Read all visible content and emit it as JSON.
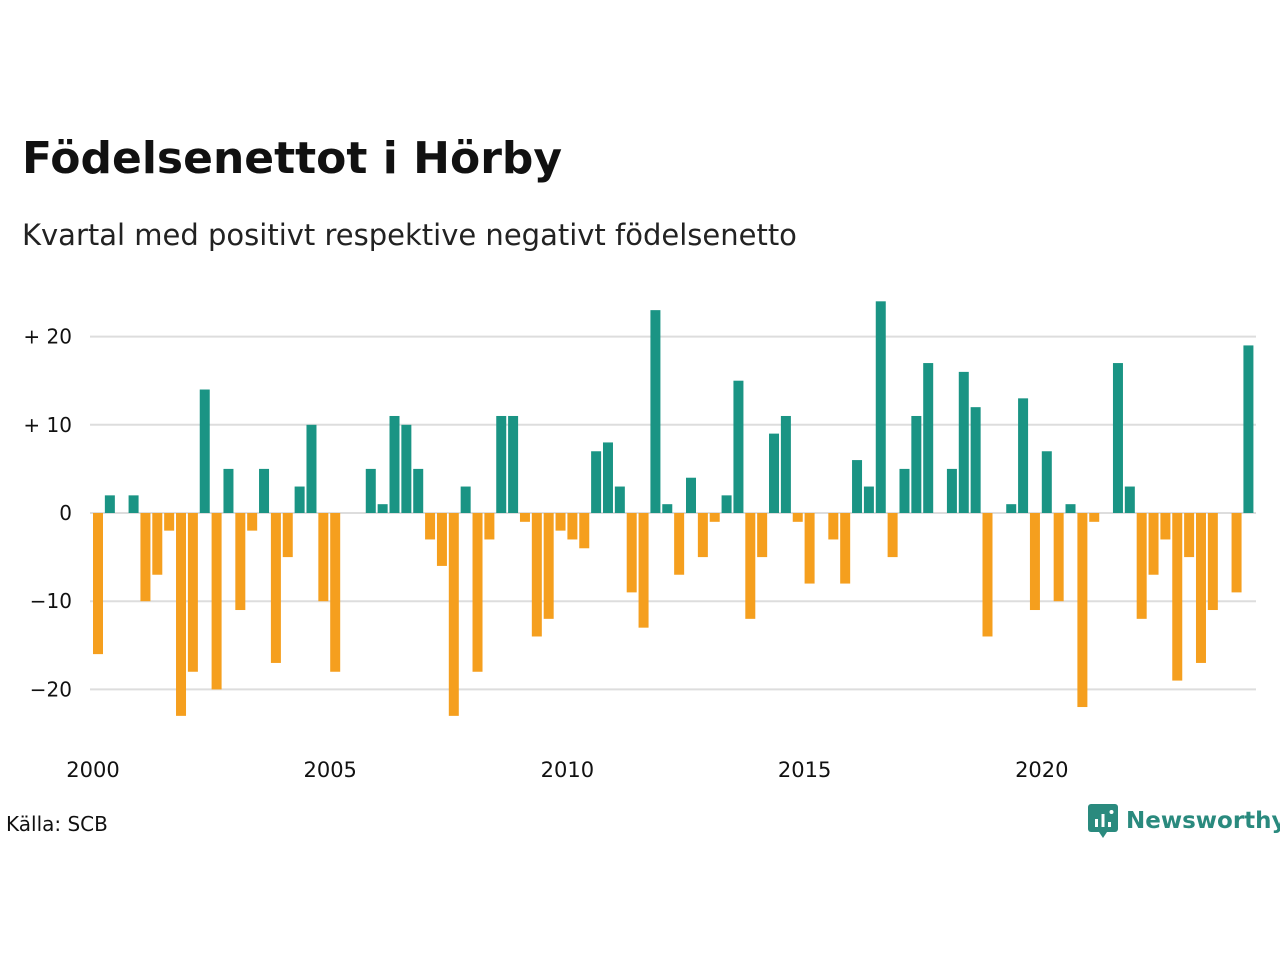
{
  "title": "Födelsenettot i Hörby",
  "subtitle": "Kvartal med positivt respektive negativt födelsenetto",
  "source": "Källa: SCB",
  "brand": {
    "name": "Newsworthy",
    "icon": "newsworthy-logo-icon"
  },
  "colors": {
    "positive": "#1a9484",
    "negative": "#f59f1e",
    "grid": "#dddddd",
    "text": "#111111"
  },
  "chart_data": {
    "type": "bar",
    "x_start": "2000 Q1",
    "values": [
      -16,
      2,
      0,
      2,
      -10,
      -7,
      -2,
      -23,
      -18,
      14,
      -20,
      5,
      -11,
      -2,
      5,
      -17,
      -5,
      3,
      10,
      -10,
      -18,
      0,
      0,
      5,
      1,
      11,
      10,
      5,
      -3,
      -6,
      -23,
      3,
      -18,
      -3,
      11,
      11,
      -1,
      -14,
      -12,
      -2,
      -3,
      -4,
      7,
      8,
      3,
      -9,
      -13,
      23,
      1,
      -7,
      4,
      -5,
      -1,
      2,
      15,
      -12,
      -5,
      9,
      11,
      -1,
      -8,
      0,
      -3,
      -8,
      6,
      3,
      24,
      -5,
      5,
      11,
      17,
      0,
      5,
      16,
      12,
      -14,
      0,
      1,
      13,
      -11,
      7,
      -10,
      1,
      -22,
      -1,
      0,
      17,
      3,
      -12,
      -7,
      -3,
      -19,
      -5,
      -17,
      -11,
      0,
      -9,
      19
    ],
    "y_ticks": [
      20,
      10,
      0,
      -10,
      -20
    ],
    "y_tick_labels": [
      "+ 20",
      "+ 10",
      "0",
      "−10",
      "−20"
    ],
    "ylim": [
      -25.5,
      25
    ],
    "x_ticks": [
      2000,
      2005,
      2010,
      2015,
      2020
    ],
    "x_tick_labels": [
      "2000",
      "2005",
      "2010",
      "2015",
      "2020"
    ],
    "grid": true,
    "legend": "none"
  }
}
